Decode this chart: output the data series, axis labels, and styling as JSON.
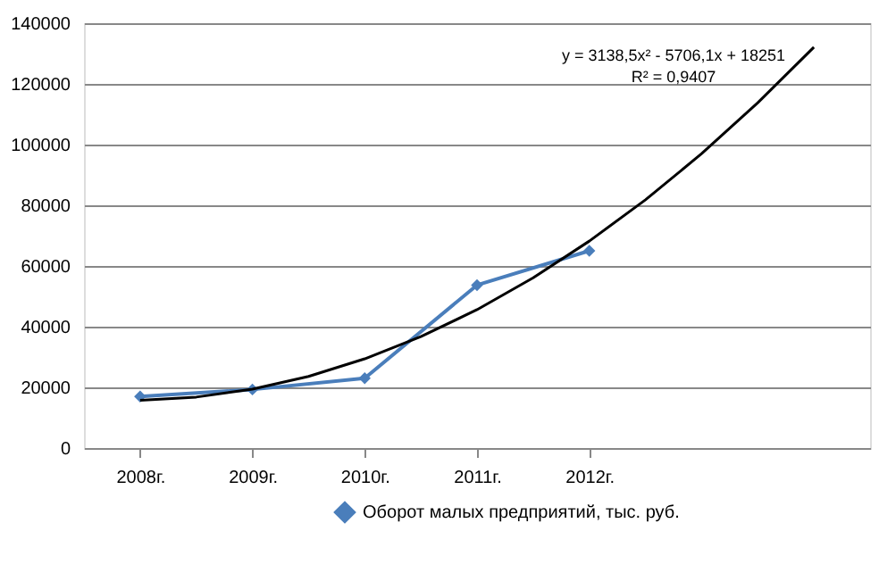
{
  "chart_data": {
    "type": "line",
    "x": [
      2008,
      2009,
      2010,
      2011,
      2012
    ],
    "xlim": [
      2007.5,
      2014.5
    ],
    "xticks": [
      {
        "value": 2008,
        "label": "2008г."
      },
      {
        "value": 2009,
        "label": "2009г."
      },
      {
        "value": 2010,
        "label": "2010г."
      },
      {
        "value": 2011,
        "label": "2011г."
      },
      {
        "value": 2012,
        "label": "2012г."
      }
    ],
    "ylim": [
      0,
      140000
    ],
    "yticks": [
      0,
      20000,
      40000,
      60000,
      80000,
      100000,
      120000,
      140000
    ],
    "series": [
      {
        "name": "Оборот малых предприятий, тыс. руб.",
        "color": "#4a7ebb",
        "marker": "diamond",
        "values": [
          17000,
          19300,
          23000,
          53700,
          65000
        ]
      },
      {
        "type": "line",
        "color": "#000000",
        "marker": "none",
        "x": [
          2008,
          2008.5,
          2009,
          2009.5,
          2010,
          2010.5,
          2011,
          2011.5,
          2012,
          2012.5,
          2013,
          2013.5,
          2014
        ],
        "values": [
          15700,
          16800,
          19400,
          23600,
          29400,
          36700,
          45600,
          56100,
          68200,
          81800,
          97000,
          113800,
          132100
        ]
      }
    ],
    "annotations": [
      "y = 3138,5x² - 5706,1x + 18251",
      "R² = 0,9407"
    ],
    "grid": "y",
    "legend": "bottom"
  }
}
